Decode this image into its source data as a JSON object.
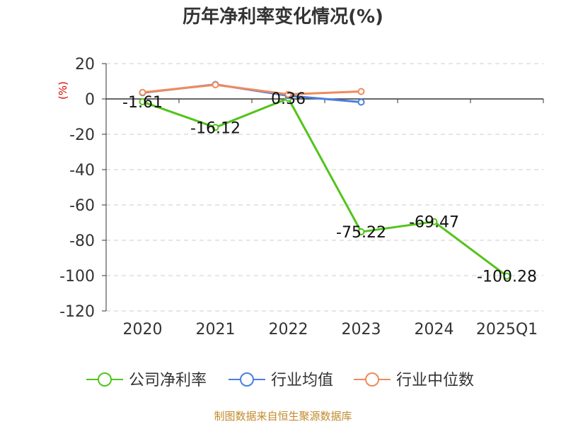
{
  "chart_data": {
    "type": "line",
    "title": "历年净利率变化情况(%)",
    "ylabel": "(%)",
    "categories": [
      "2020",
      "2021",
      "2022",
      "2023",
      "2024",
      "2025Q1"
    ],
    "ylim": [
      -120,
      20
    ],
    "yticks": [
      20,
      0,
      -20,
      -40,
      -60,
      -80,
      -100,
      -120
    ],
    "grid": "horizontal dashed",
    "legend_position": "bottom",
    "series": [
      {
        "name": "公司净利率",
        "color": "#52c41a",
        "values": [
          -1.61,
          -16.12,
          0.36,
          -75.22,
          -69.47,
          -100.28
        ],
        "labels": [
          "-1.61",
          "-16.12",
          "0.36",
          "-75.22",
          "-69.47",
          "-100.28"
        ]
      },
      {
        "name": "行业均值",
        "color": "#4a7fe0",
        "values": [
          3.5,
          8.2,
          1.8,
          -1.8,
          null,
          null
        ]
      },
      {
        "name": "行业中位数",
        "color": "#f08a5a",
        "values": [
          3.7,
          8.0,
          2.6,
          4.2,
          null,
          null
        ]
      }
    ]
  },
  "footer": {
    "source": "制图数据来自恒生聚源数据库"
  }
}
